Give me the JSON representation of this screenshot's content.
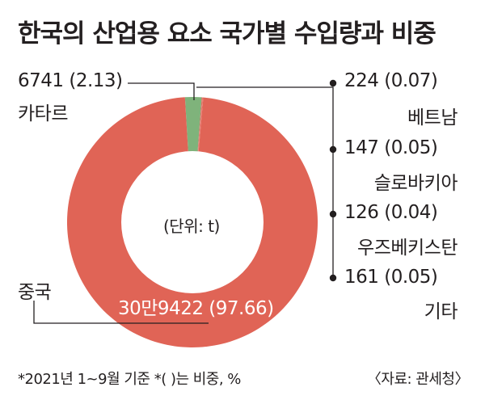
{
  "chart_data": {
    "type": "pie",
    "title": "한국의 산업용 요소 국가별 수입량과 비중",
    "unit_label": "(단위: t)",
    "slices": [
      {
        "country": "중국",
        "value_label": "30만9422",
        "share_label": "(97.66)",
        "value": 309422,
        "share": 97.66
      },
      {
        "country": "카타르",
        "value_label": "6741",
        "share_label": "(2.13)",
        "value": 6741,
        "share": 2.13
      },
      {
        "country": "베트남",
        "value_label": "224",
        "share_label": "(0.07)",
        "value": 224,
        "share": 0.07
      },
      {
        "country": "슬로바키아",
        "value_label": "147",
        "share_label": "(0.05)",
        "value": 147,
        "share": 0.05
      },
      {
        "country": "우즈베키스탄",
        "value_label": "126",
        "share_label": "(0.04)",
        "value": 126,
        "share": 0.04
      },
      {
        "country": "기타",
        "value_label": "161",
        "share_label": "(0.05)",
        "value": 161,
        "share": 0.05
      }
    ],
    "colors": {
      "china": "#e06456",
      "qatar": "#7fb37b",
      "line": "#231f20"
    }
  },
  "footnote": "*2021년 1~9월 기준  *(  )는 비중, %",
  "source": "〈자료: 관세청〉"
}
